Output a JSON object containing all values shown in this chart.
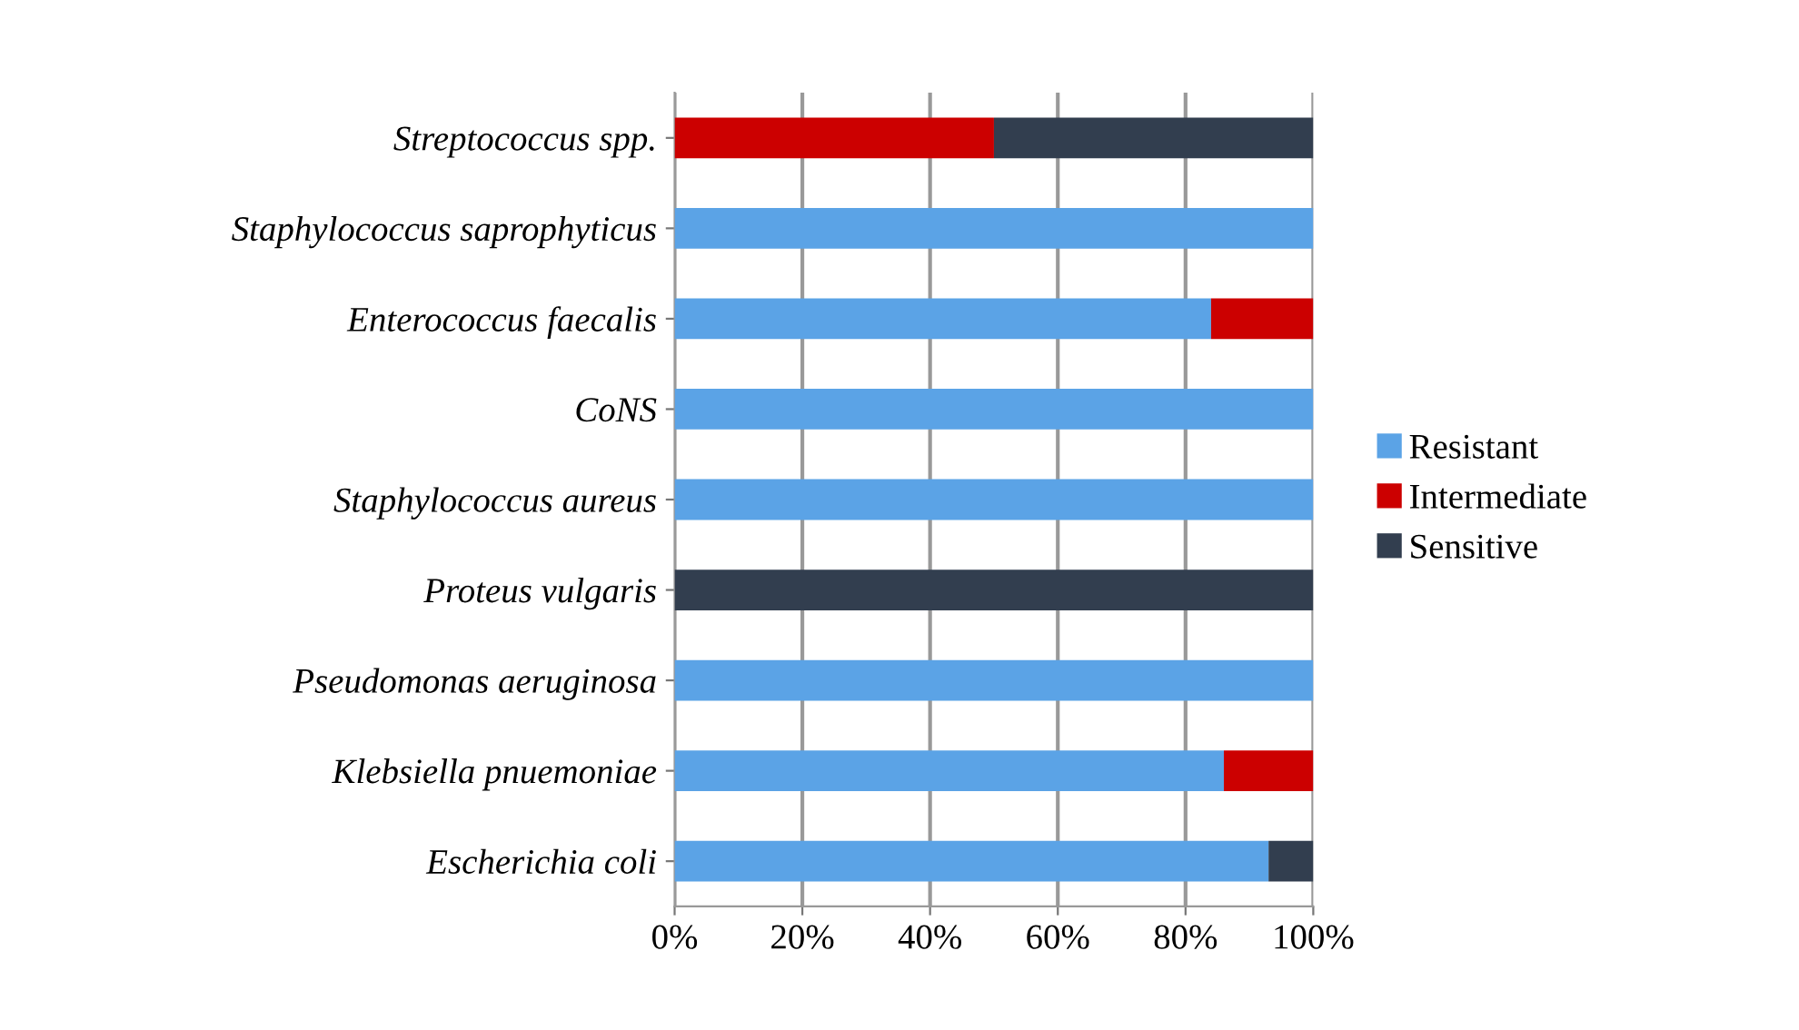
{
  "chart_data": {
    "type": "bar",
    "orientation": "horizontal",
    "stacked": true,
    "categories": [
      "Streptococcus spp.",
      "Staphylococcus saprophyticus",
      "Enterococcus faecalis",
      "CoNS",
      "Staphylococcus aureus",
      "Proteus vulgaris",
      "Pseudomonas aeruginosa",
      "Klebsiella pnuemoniae",
      "Escherichia coli"
    ],
    "series": [
      {
        "name": "Resistant",
        "color": "#5ba3e6",
        "values": [
          0,
          100,
          84,
          100,
          100,
          0,
          100,
          86,
          93
        ]
      },
      {
        "name": "Intermediate",
        "color": "#cc0000",
        "values": [
          50,
          0,
          16,
          0,
          0,
          0,
          0,
          14,
          0
        ]
      },
      {
        "name": "Sensitive",
        "color": "#323e4f",
        "values": [
          50,
          0,
          0,
          0,
          0,
          100,
          0,
          0,
          7
        ]
      }
    ],
    "xlim": [
      0,
      100
    ],
    "xticks": [
      {
        "value": 0,
        "label": "0%"
      },
      {
        "value": 20,
        "label": "20%"
      },
      {
        "value": 40,
        "label": "40%"
      },
      {
        "value": 60,
        "label": "60%"
      },
      {
        "value": 80,
        "label": "80%"
      },
      {
        "value": 100,
        "label": "100%"
      }
    ],
    "grid": "x",
    "legend": "right"
  }
}
